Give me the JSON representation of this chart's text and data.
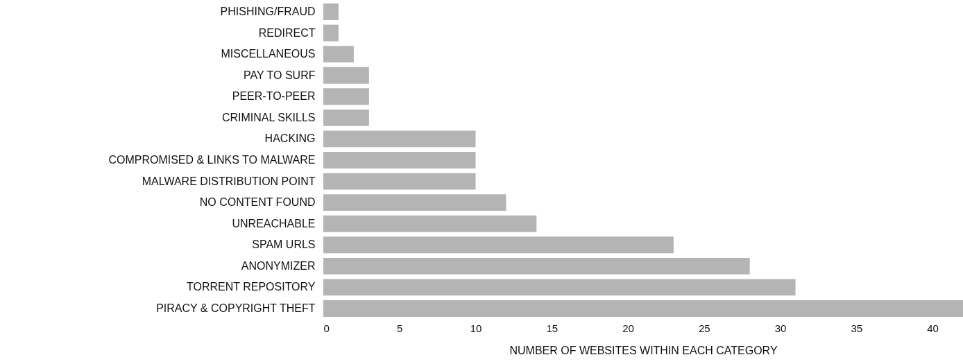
{
  "chart_data": {
    "type": "bar",
    "orientation": "horizontal",
    "xlabel": "NUMBER OF WEBSITES WITHIN EACH CATEGORY",
    "categories": [
      "PHISHING/FRAUD",
      "REDIRECT",
      "MISCELLANEOUS",
      "PAY TO SURF",
      "PEER-TO-PEER",
      "CRIMINAL SKILLS",
      "HACKING",
      "COMPROMISED & LINKS TO MALWARE",
      "MALWARE DISTRIBUTION POINT",
      "NO CONTENT FOUND",
      "UNREACHABLE",
      "SPAM URLS",
      "ANONYMIZER",
      "TORRENT REPOSITORY",
      "PIRACY & COPYRIGHT THEFT"
    ],
    "values": [
      1,
      1,
      2,
      3,
      3,
      3,
      10,
      10,
      10,
      12,
      14,
      23,
      28,
      31,
      42
    ],
    "color": "#b4b4b4",
    "xlim": [
      0,
      42
    ],
    "xticks": [
      0,
      5,
      10,
      15,
      20,
      25,
      30,
      35,
      40
    ],
    "grid": false
  }
}
